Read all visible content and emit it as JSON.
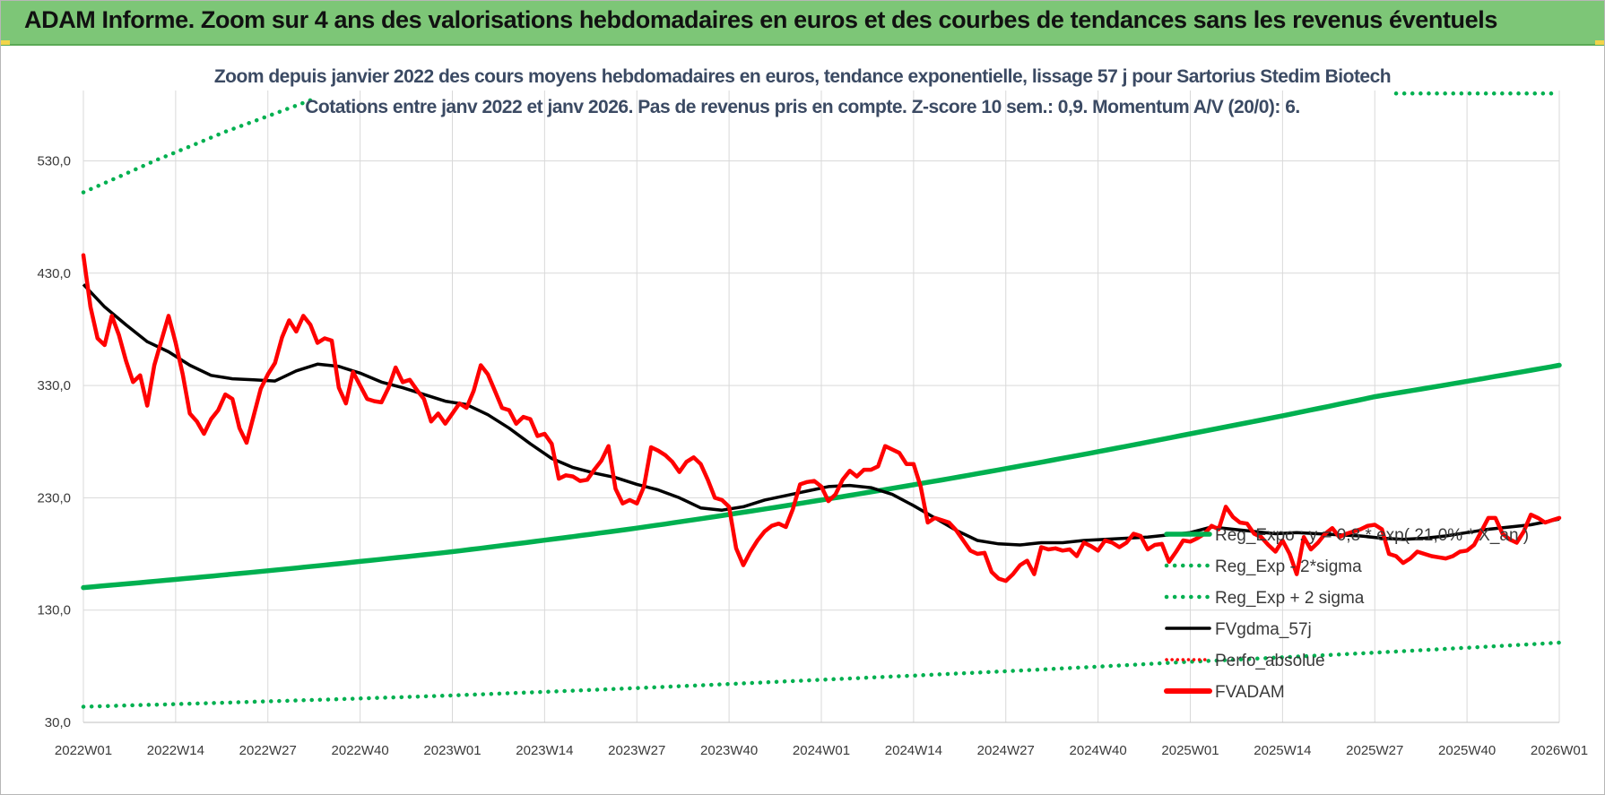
{
  "header": {
    "banner_title": "ADAM Informe. Zoom sur 4 ans des valorisations hebdomadaires en euros et des courbes de tendances sans les revenus éventuels"
  },
  "colors": {
    "banner": "#7dc677",
    "reg_expo": "#00b050",
    "fvadam": "#ff0000",
    "fvgdma": "#000000",
    "perfo": "#ff0000",
    "title_text": "#3b4a63"
  },
  "chart_data": {
    "type": "line",
    "title": "Zoom depuis janvier 2022 des cours moyens hebdomadaires en euros, tendance exponentielle, lissage 57 j pour Sartorius Stedim Biotech",
    "subtitle": "Cotations entre janv 2022 et janv 2026. Pas de revenus pris en compte. Z-score 10 sem.: 0,9. Momentum A/V (20/0): 6.",
    "xlabel": "",
    "ylabel": "",
    "ylim": [
      30,
      590
    ],
    "yticks": [
      "30,0",
      "130,0",
      "230,0",
      "330,0",
      "430,0",
      "530,0"
    ],
    "ytick_values": [
      30,
      130,
      230,
      330,
      430,
      530
    ],
    "xticks": [
      "2022W01",
      "2022W14",
      "2022W27",
      "2022W40",
      "2023W01",
      "2023W14",
      "2023W27",
      "2023W40",
      "2024W01",
      "2024W14",
      "2024W27",
      "2024W40",
      "2025W01",
      "2025W14",
      "2025W27",
      "2025W40",
      "2026W01"
    ],
    "xtick_weeks": [
      0,
      13,
      26,
      39,
      52,
      65,
      78,
      91,
      104,
      117,
      130,
      143,
      156,
      169,
      182,
      195,
      208
    ],
    "grid": true,
    "legend_position": "right",
    "legend": [
      "Reg_Expo : y = 0,8 * exp( 21,0% * X_an )",
      "Reg_Exp - 2*sigma",
      "Reg_Exp + 2 sigma",
      "FVgdma_57j",
      "Perfo_absolue",
      "FVADAM"
    ],
    "series": [
      {
        "name": "Reg_Expo : y = 0,8 * exp( 21,0% * X_an )",
        "style": "solid-thick",
        "color": "#00b050",
        "x": [
          0,
          26,
          52,
          78,
          104,
          130,
          156,
          182,
          208
        ],
        "values": [
          150,
          165,
          182,
          203,
          228,
          256,
          287,
          320,
          348
        ]
      },
      {
        "name": "Reg_Exp - 2*sigma",
        "style": "dotted",
        "color": "#00b050",
        "x": [
          0,
          52,
          104,
          156,
          208
        ],
        "values": [
          44,
          54,
          68,
          84,
          101
        ]
      },
      {
        "name": "Reg_Exp + 2 sigma",
        "style": "dotted",
        "color": "#00b050",
        "x": [
          0,
          10,
          20,
          32
        ],
        "values": [
          502,
          530,
          556,
          584
        ]
      },
      {
        "name": "Reg_Exp + 2 sigma (suite)",
        "style": "dotted",
        "color": "#00b050",
        "x": [
          185,
          208
        ],
        "values": [
          590,
          590
        ]
      },
      {
        "name": "FVgdma_57j",
        "style": "solid",
        "color": "#000000",
        "x": [
          0,
          3,
          6,
          9,
          12,
          15,
          18,
          21,
          24,
          27,
          30,
          33,
          36,
          39,
          42,
          45,
          48,
          51,
          54,
          57,
          60,
          63,
          66,
          69,
          72,
          75,
          78,
          81,
          84,
          87,
          90,
          93,
          96,
          99,
          102,
          105,
          108,
          111,
          114,
          117,
          120,
          123,
          126,
          129,
          132,
          135,
          138,
          141,
          144,
          147,
          150,
          153,
          156,
          159,
          162,
          165,
          168,
          171,
          174,
          177,
          180,
          183,
          186,
          189,
          192,
          195,
          198,
          201,
          204,
          208
        ],
        "values": [
          420,
          400,
          384,
          369,
          360,
          348,
          339,
          336,
          335,
          334,
          343,
          349,
          347,
          341,
          333,
          328,
          322,
          316,
          313,
          304,
          292,
          278,
          265,
          257,
          252,
          248,
          242,
          237,
          230,
          221,
          219,
          222,
          228,
          232,
          236,
          240,
          241,
          239,
          233,
          223,
          212,
          201,
          192,
          189,
          188,
          190,
          190,
          192,
          193,
          194,
          195,
          197,
          199,
          204,
          202,
          200,
          198,
          199,
          198,
          197,
          196,
          194,
          193,
          194,
          196,
          199,
          202,
          204,
          206,
          211
        ]
      },
      {
        "name": "FVADAM",
        "style": "solid-thick",
        "color": "#ff0000",
        "x": [
          0,
          1,
          2,
          3,
          4,
          5,
          6,
          7,
          8,
          9,
          10,
          11,
          12,
          13,
          14,
          15,
          16,
          17,
          18,
          19,
          20,
          21,
          22,
          23,
          24,
          25,
          26,
          27,
          28,
          29,
          30,
          31,
          32,
          33,
          34,
          35,
          36,
          37,
          38,
          39,
          40,
          41,
          42,
          43,
          44,
          45,
          46,
          47,
          48,
          49,
          50,
          51,
          52,
          53,
          54,
          55,
          56,
          57,
          58,
          59,
          60,
          61,
          62,
          63,
          64,
          65,
          66,
          67,
          68,
          69,
          70,
          71,
          72,
          73,
          74,
          75,
          76,
          77,
          78,
          79,
          80,
          81,
          82,
          83,
          84,
          85,
          86,
          87,
          88,
          89,
          90,
          91,
          92,
          93,
          94,
          95,
          96,
          97,
          98,
          99,
          100,
          101,
          102,
          103,
          104,
          105,
          106,
          107,
          108,
          109,
          110,
          111,
          112,
          113,
          114,
          115,
          116,
          117,
          118,
          119,
          120,
          121,
          122,
          123,
          124,
          125,
          126,
          127,
          128,
          129,
          130,
          131,
          132,
          133,
          134,
          135,
          136,
          137,
          138,
          139,
          140,
          141,
          142,
          143,
          144,
          145,
          146,
          147,
          148,
          149,
          150,
          151,
          152,
          153,
          154,
          155,
          156,
          157,
          158,
          159,
          160,
          161,
          162,
          163,
          164,
          165,
          166,
          167,
          168,
          169,
          170,
          171,
          172,
          173,
          174,
          175,
          176,
          177,
          178,
          179,
          180,
          181,
          182,
          183,
          184,
          185,
          186,
          187,
          188,
          189,
          190,
          191,
          192,
          193,
          194,
          195,
          196,
          197,
          198,
          199,
          200,
          201,
          202,
          203,
          204,
          205,
          206,
          207,
          208
        ],
        "values": [
          446,
          400,
          372,
          366,
          392,
          375,
          352,
          333,
          339,
          312,
          348,
          370,
          392,
          368,
          340,
          305,
          298,
          287,
          300,
          308,
          322,
          318,
          292,
          279,
          303,
          327,
          340,
          350,
          373,
          388,
          378,
          392,
          384,
          368,
          372,
          370,
          328,
          314,
          342,
          330,
          318,
          316,
          315,
          328,
          346,
          333,
          335,
          326,
          318,
          298,
          305,
          296,
          305,
          314,
          310,
          325,
          348,
          340,
          325,
          310,
          308,
          296,
          302,
          300,
          285,
          287,
          278,
          247,
          250,
          249,
          245,
          246,
          255,
          263,
          276,
          238,
          225,
          228,
          225,
          240,
          275,
          272,
          268,
          262,
          253,
          262,
          266,
          260,
          246,
          230,
          228,
          222,
          185,
          170,
          182,
          192,
          200,
          205,
          207,
          204,
          220,
          242,
          244,
          245,
          240,
          227,
          233,
          246,
          254,
          249,
          255,
          255,
          258,
          276,
          273,
          270,
          260,
          260,
          240,
          208,
          212,
          210,
          208,
          201,
          192,
          183,
          180,
          181,
          164,
          158,
          156,
          162,
          170,
          174,
          162,
          186,
          184,
          185,
          183,
          184,
          178,
          190,
          187,
          183,
          192,
          190,
          186,
          190,
          198,
          196,
          184,
          188,
          189,
          173,
          182,
          192,
          191,
          194,
          198,
          205,
          202,
          222,
          213,
          208,
          207,
          198,
          195,
          188,
          182,
          192,
          180,
          162,
          195,
          184,
          190,
          198,
          203,
          195,
          198,
          200,
          202,
          205,
          206,
          202,
          180,
          178,
          172,
          176,
          182,
          180,
          178,
          177,
          176,
          178,
          182,
          183,
          188,
          200,
          212,
          212,
          198,
          193,
          190,
          200,
          215,
          212,
          208,
          210,
          212
        ]
      }
    ]
  }
}
